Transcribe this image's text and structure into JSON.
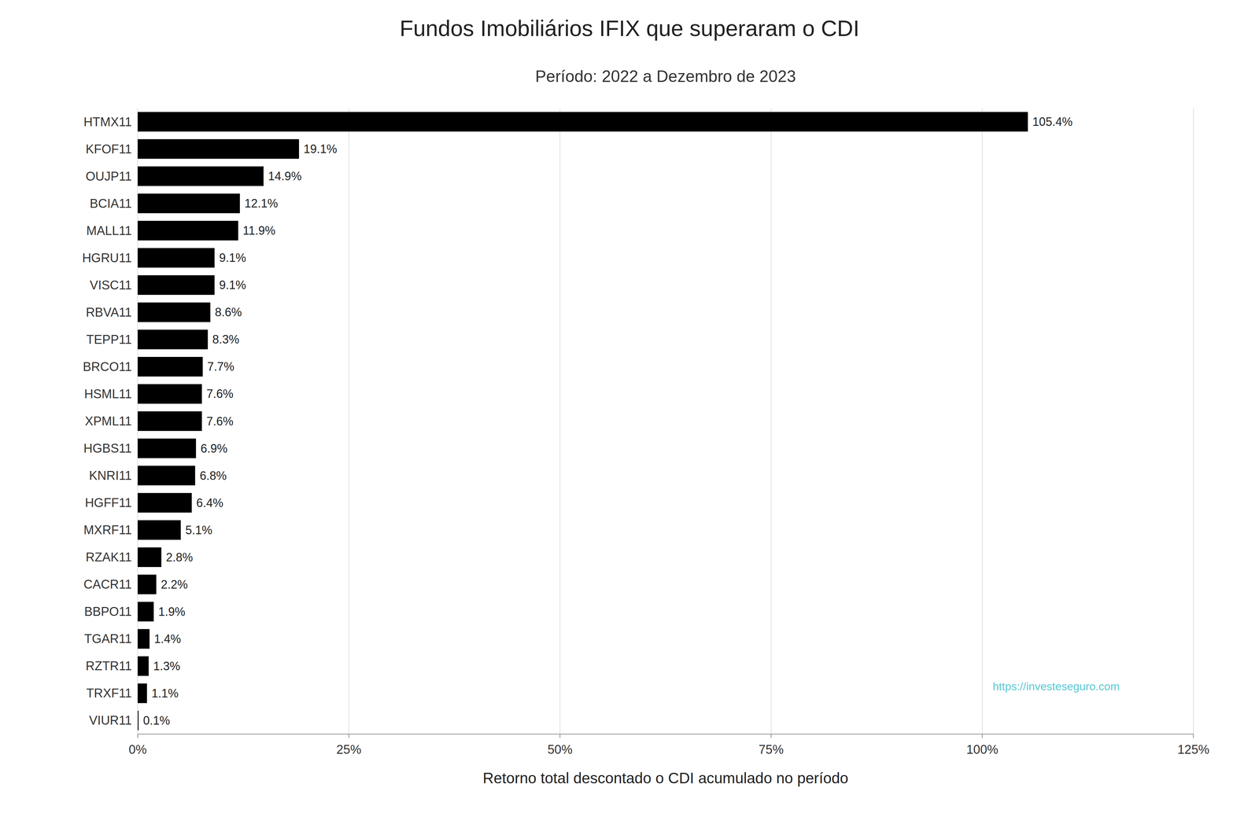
{
  "chart_data": {
    "type": "bar",
    "orientation": "horizontal",
    "title": "Fundos Imobiliários IFIX que superaram o CDI",
    "subtitle": "Período: 2022 a Dezembro de 2023",
    "xlabel": "Retorno total descontado o CDI acumulado no período",
    "annotation": "https://investeseguro.com",
    "categories": [
      "HTMX11",
      "KFOF11",
      "OUJP11",
      "BCIA11",
      "MALL11",
      "HGRU11",
      "VISC11",
      "RBVA11",
      "TEPP11",
      "BRCO11",
      "HSML11",
      "XPML11",
      "HGBS11",
      "KNRI11",
      "HGFF11",
      "MXRF11",
      "RZAK11",
      "CACR11",
      "BBPO11",
      "TGAR11",
      "RZTR11",
      "TRXF11",
      "VIUR11"
    ],
    "values": [
      105.4,
      19.1,
      14.9,
      12.1,
      11.9,
      9.1,
      9.1,
      8.6,
      8.3,
      7.7,
      7.6,
      7.6,
      6.9,
      6.8,
      6.4,
      5.1,
      2.8,
      2.2,
      1.9,
      1.4,
      1.3,
      1.1,
      0.1
    ],
    "value_labels": [
      "105.4%",
      "19.1%",
      "14.9%",
      "12.1%",
      "11.9%",
      "9.1%",
      "9.1%",
      "8.6%",
      "8.3%",
      "7.7%",
      "7.6%",
      "7.6%",
      "6.9%",
      "6.8%",
      "6.4%",
      "5.1%",
      "2.8%",
      "2.2%",
      "1.9%",
      "1.4%",
      "1.3%",
      "1.1%",
      "0.1%"
    ],
    "data_labels": true,
    "color": "#000000",
    "xlim": [
      0,
      125
    ],
    "xticks": [
      {
        "value": 0,
        "label": "0%"
      },
      {
        "value": 25,
        "label": "25%"
      },
      {
        "value": 50,
        "label": "50%"
      },
      {
        "value": 75,
        "label": "75%"
      },
      {
        "value": 100,
        "label": "100%"
      },
      {
        "value": 125,
        "label": "125%"
      }
    ],
    "grid": true
  }
}
